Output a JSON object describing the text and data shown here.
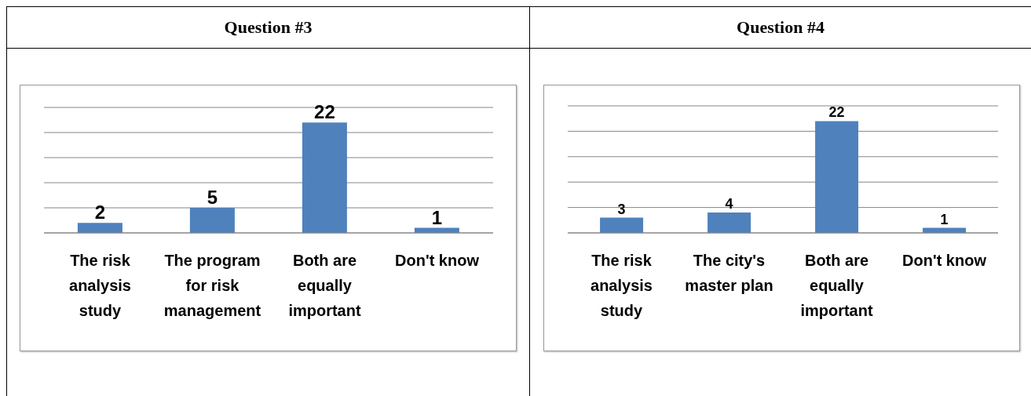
{
  "chart_data": [
    {
      "type": "bar",
      "title": "Question #3",
      "categories": [
        "The risk analysis study",
        "The program for risk management",
        "Both are equally important",
        "Don't know"
      ],
      "values": [
        2,
        5,
        22,
        1
      ],
      "color": "#4f81bd",
      "data_labels": true,
      "ylim": [
        0,
        25
      ],
      "grid": "y",
      "tick_labels": "x",
      "legend": false
    },
    {
      "type": "bar",
      "title": "Question #4",
      "categories": [
        "The risk analysis study",
        "The city's master plan",
        "Both are equally important",
        "Don't know"
      ],
      "values": [
        3,
        4,
        22,
        1
      ],
      "color": "#4f81bd",
      "data_labels": true,
      "ylim": [
        0,
        25
      ],
      "grid": "y",
      "tick_labels": "x",
      "legend": false
    }
  ]
}
